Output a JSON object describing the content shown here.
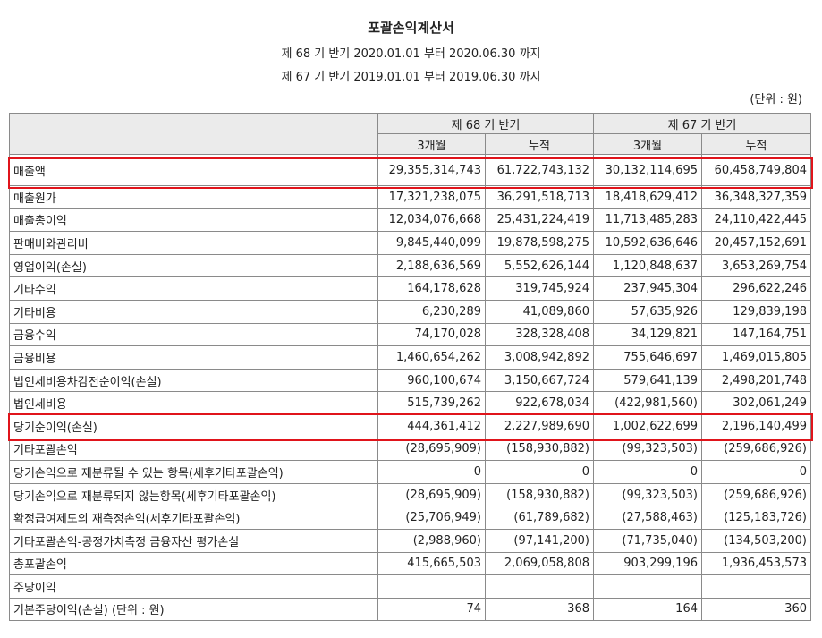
{
  "title": "포괄손익계산서",
  "period_current": "제 68 기 반기 2020.01.01 부터 2020.06.30 까지",
  "period_prior": "제 67 기 반기 2019.01.01 부터 2019.06.30 까지",
  "unit": "(단위 : 원)",
  "columns": {
    "current": "제 68 기 반기",
    "prior": "제 67 기 반기",
    "three_month": "3개월",
    "cumulative": "누적"
  },
  "rows": [
    {
      "label": "매출액",
      "v": [
        "29,355,314,743",
        "61,722,743,132",
        "30,132,114,695",
        "60,458,749,804"
      ]
    },
    {
      "label": "매출원가",
      "v": [
        "17,321,238,075",
        "36,291,518,713",
        "18,418,629,412",
        "36,348,327,359"
      ]
    },
    {
      "label": "매출총이익",
      "v": [
        "12,034,076,668",
        "25,431,224,419",
        "11,713,485,283",
        "24,110,422,445"
      ]
    },
    {
      "label": "판매비와관리비",
      "v": [
        "9,845,440,099",
        "19,878,598,275",
        "10,592,636,646",
        "20,457,152,691"
      ]
    },
    {
      "label": "영업이익(손실)",
      "v": [
        "2,188,636,569",
        "5,552,626,144",
        "1,120,848,637",
        "3,653,269,754"
      ]
    },
    {
      "label": "기타수익",
      "v": [
        "164,178,628",
        "319,745,924",
        "237,945,304",
        "296,622,246"
      ]
    },
    {
      "label": "기타비용",
      "v": [
        "6,230,289",
        "41,089,860",
        "57,635,926",
        "129,839,198"
      ]
    },
    {
      "label": "금융수익",
      "v": [
        "74,170,028",
        "328,328,408",
        "34,129,821",
        "147,164,751"
      ]
    },
    {
      "label": "금융비용",
      "v": [
        "1,460,654,262",
        "3,008,942,892",
        "755,646,697",
        "1,469,015,805"
      ]
    },
    {
      "label": "법인세비용차감전순이익(손실)",
      "v": [
        "960,100,674",
        "3,150,667,724",
        "579,641,139",
        "2,498,201,748"
      ]
    },
    {
      "label": "법인세비용",
      "v": [
        "515,739,262",
        "922,678,034",
        "(422,981,560)",
        "302,061,249"
      ]
    },
    {
      "label": "당기순이익(손실)",
      "v": [
        "444,361,412",
        "2,227,989,690",
        "1,002,622,699",
        "2,196,140,499"
      ]
    },
    {
      "label": "기타포괄손익",
      "v": [
        "(28,695,909)",
        "(158,930,882)",
        "(99,323,503)",
        "(259,686,926)"
      ]
    },
    {
      "label": "당기손익으로 재분류될 수 있는 항목(세후기타포괄손익)",
      "v": [
        "0",
        "0",
        "0",
        "0"
      ]
    },
    {
      "label": "당기손익으로 재분류되지 않는항목(세후기타포괄손익)",
      "v": [
        "(28,695,909)",
        "(158,930,882)",
        "(99,323,503)",
        "(259,686,926)"
      ]
    },
    {
      "label": "확정급여제도의 재측정손익(세후기타포괄손익)",
      "v": [
        "(25,706,949)",
        "(61,789,682)",
        "(27,588,463)",
        "(125,183,726)"
      ]
    },
    {
      "label": "기타포괄손익-공정가치측정 금융자산 평가손실",
      "v": [
        "(2,988,960)",
        "(97,141,200)",
        "(71,735,040)",
        "(134,503,200)"
      ]
    },
    {
      "label": "총포괄손익",
      "v": [
        "415,665,503",
        "2,069,058,808",
        "903,299,196",
        "1,936,453,573"
      ]
    },
    {
      "label": "주당이익",
      "v": [
        "",
        "",
        "",
        ""
      ]
    },
    {
      "label": "기본주당이익(손실) (단위 : 원)",
      "v": [
        "74",
        "368",
        "164",
        "360"
      ]
    }
  ]
}
